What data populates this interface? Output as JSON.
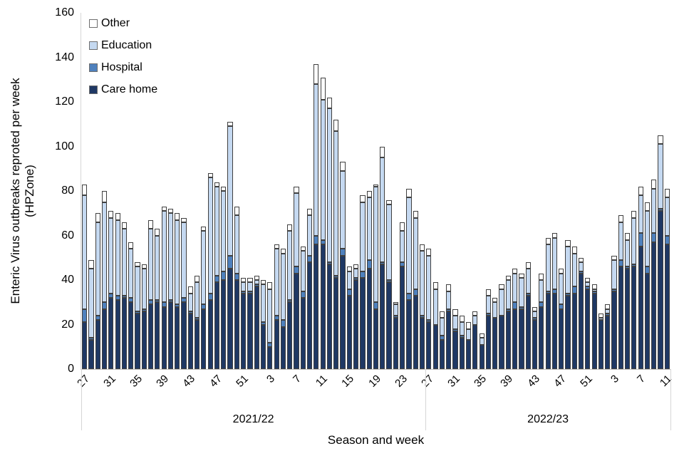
{
  "chart_data": {
    "type": "bar",
    "stacked": true,
    "title": "",
    "xlabel": "Season and week",
    "ylabel_line1": "Enteric Virus outbreaks reproted per week",
    "ylabel_line2": "(HPZone)",
    "ylim": [
      0,
      160
    ],
    "yticks": [
      0,
      20,
      40,
      60,
      80,
      100,
      120,
      140,
      160
    ],
    "grid": false,
    "x_tick_interval": 4,
    "legend_position": "top-left-inside",
    "legend": [
      {
        "label": "Other",
        "color": "#ffffff"
      },
      {
        "label": "Education",
        "color": "#c5d9f1"
      },
      {
        "label": "Hospital",
        "color": "#4f81bd"
      },
      {
        "label": "Care home",
        "color": "#1f3864"
      }
    ],
    "stack_order_bottom_to_top": [
      "Care home",
      "Hospital",
      "Education",
      "Other"
    ],
    "value_order": [
      "care_home",
      "hospital",
      "education",
      "other"
    ],
    "seasons": [
      {
        "label": "2021/22",
        "bars": [
          {
            "week": 27,
            "v": [
              21,
              6,
              51,
              5
            ]
          },
          {
            "week": 28,
            "v": [
              13,
              1,
              31,
              4
            ]
          },
          {
            "week": 29,
            "v": [
              22,
              2,
              42,
              4
            ]
          },
          {
            "week": 30,
            "v": [
              27,
              3,
              45,
              5
            ]
          },
          {
            "week": 31,
            "v": [
              32,
              2,
              34,
              3
            ]
          },
          {
            "week": 32,
            "v": [
              31,
              2,
              34,
              3
            ]
          },
          {
            "week": 33,
            "v": [
              32,
              1,
              30,
              3
            ]
          },
          {
            "week": 34,
            "v": [
              30,
              2,
              22,
              3
            ]
          },
          {
            "week": 35,
            "v": [
              25,
              1,
              20,
              2
            ]
          },
          {
            "week": 36,
            "v": [
              26,
              1,
              18,
              2
            ]
          },
          {
            "week": 37,
            "v": [
              29,
              2,
              32,
              4
            ]
          },
          {
            "week": 38,
            "v": [
              30,
              1,
              29,
              3
            ]
          },
          {
            "week": 39,
            "v": [
              28,
              2,
              41,
              2
            ]
          },
          {
            "week": 40,
            "v": [
              30,
              1,
              39,
              2
            ]
          },
          {
            "week": 41,
            "v": [
              28,
              1,
              38,
              3
            ]
          },
          {
            "week": 42,
            "v": [
              30,
              2,
              34,
              2
            ]
          },
          {
            "week": 43,
            "v": [
              25,
              1,
              8,
              3
            ]
          },
          {
            "week": 44,
            "v": [
              22,
              1,
              16,
              3
            ]
          },
          {
            "week": 45,
            "v": [
              27,
              2,
              33,
              2
            ]
          },
          {
            "week": 46,
            "v": [
              31,
              3,
              52,
              2
            ]
          },
          {
            "week": 47,
            "v": [
              39,
              3,
              40,
              2
            ]
          },
          {
            "week": 48,
            "v": [
              40,
              4,
              36,
              2
            ]
          },
          {
            "week": 49,
            "v": [
              45,
              6,
              58,
              2
            ]
          },
          {
            "week": 50,
            "v": [
              40,
              3,
              26,
              4
            ]
          },
          {
            "week": 51,
            "v": [
              34,
              1,
              4,
              2
            ]
          },
          {
            "week": 52,
            "v": [
              34,
              1,
              4,
              2
            ]
          },
          {
            "week": 1,
            "v": [
              37,
              1,
              2,
              2
            ]
          },
          {
            "week": 2,
            "v": [
              20,
              1,
              17,
              2
            ]
          },
          {
            "week": 3,
            "v": [
              10,
              2,
              24,
              3
            ]
          },
          {
            "week": 4,
            "v": [
              22,
              2,
              30,
              2
            ]
          },
          {
            "week": 5,
            "v": [
              19,
              3,
              30,
              2
            ]
          },
          {
            "week": 6,
            "v": [
              30,
              1,
              31,
              3
            ]
          },
          {
            "week": 7,
            "v": [
              43,
              3,
              33,
              3
            ]
          },
          {
            "week": 8,
            "v": [
              32,
              3,
              18,
              2
            ]
          },
          {
            "week": 9,
            "v": [
              48,
              3,
              18,
              3
            ]
          },
          {
            "week": 10,
            "v": [
              56,
              4,
              68,
              9
            ]
          },
          {
            "week": 11,
            "v": [
              56,
              2,
              63,
              10
            ]
          },
          {
            "week": 12,
            "v": [
              47,
              1,
              69,
              5
            ]
          },
          {
            "week": 13,
            "v": [
              41,
              1,
              65,
              5
            ]
          },
          {
            "week": 14,
            "v": [
              51,
              3,
              35,
              4
            ]
          },
          {
            "week": 15,
            "v": [
              33,
              3,
              8,
              2
            ]
          },
          {
            "week": 16,
            "v": [
              40,
              1,
              4,
              2
            ]
          },
          {
            "week": 17,
            "v": [
              41,
              3,
              31,
              3
            ]
          },
          {
            "week": 18,
            "v": [
              45,
              4,
              28,
              3
            ]
          },
          {
            "week": 19,
            "v": [
              27,
              3,
              52,
              1
            ]
          },
          {
            "week": 20,
            "v": [
              47,
              1,
              47,
              5
            ]
          },
          {
            "week": 21,
            "v": [
              39,
              1,
              34,
              2
            ]
          },
          {
            "week": 22,
            "v": [
              23,
              1,
              5,
              1
            ]
          },
          {
            "week": 23,
            "v": [
              46,
              2,
              14,
              4
            ]
          },
          {
            "week": 24,
            "v": [
              31,
              3,
              43,
              4
            ]
          },
          {
            "week": 25,
            "v": [
              33,
              3,
              32,
              3
            ]
          },
          {
            "week": 26,
            "v": [
              23,
              1,
              29,
              3
            ]
          }
        ]
      },
      {
        "label": "2022/23",
        "bars": [
          {
            "week": 27,
            "v": [
              21,
              1,
              29,
              3
            ]
          },
          {
            "week": 28,
            "v": [
              20,
              0,
              16,
              3
            ]
          },
          {
            "week": 29,
            "v": [
              13,
              2,
              8,
              3
            ]
          },
          {
            "week": 30,
            "v": [
              26,
              1,
              8,
              3
            ]
          },
          {
            "week": 31,
            "v": [
              17,
              1,
              6,
              3
            ]
          },
          {
            "week": 32,
            "v": [
              14,
              1,
              6,
              3
            ]
          },
          {
            "week": 33,
            "v": [
              13,
              0,
              5,
              3
            ]
          },
          {
            "week": 34,
            "v": [
              20,
              0,
              4,
              2
            ]
          },
          {
            "week": 35,
            "v": [
              11,
              0,
              3,
              2
            ]
          },
          {
            "week": 36,
            "v": [
              24,
              1,
              8,
              3
            ]
          },
          {
            "week": 37,
            "v": [
              23,
              0,
              7,
              2
            ]
          },
          {
            "week": 38,
            "v": [
              24,
              0,
              12,
              2
            ]
          },
          {
            "week": 39,
            "v": [
              26,
              1,
              13,
              2
            ]
          },
          {
            "week": 40,
            "v": [
              27,
              3,
              13,
              2
            ]
          },
          {
            "week": 41,
            "v": [
              27,
              1,
              13,
              2
            ]
          },
          {
            "week": 42,
            "v": [
              33,
              1,
              11,
              3
            ]
          },
          {
            "week": 43,
            "v": [
              22,
              1,
              3,
              2
            ]
          },
          {
            "week": 44,
            "v": [
              28,
              2,
              10,
              3
            ]
          },
          {
            "week": 45,
            "v": [
              34,
              1,
              21,
              3
            ]
          },
          {
            "week": 46,
            "v": [
              34,
              2,
              23,
              2
            ]
          },
          {
            "week": 47,
            "v": [
              27,
              2,
              14,
              2
            ]
          },
          {
            "week": 48,
            "v": [
              33,
              1,
              21,
              3
            ]
          },
          {
            "week": 49,
            "v": [
              34,
              3,
              15,
              3
            ]
          },
          {
            "week": 50,
            "v": [
              43,
              1,
              4,
              2
            ]
          },
          {
            "week": 51,
            "v": [
              36,
              1,
              2,
              2
            ]
          },
          {
            "week": 52,
            "v": [
              34,
              1,
              1,
              2
            ]
          },
          {
            "week": 1,
            "v": [
              22,
              0,
              1,
              2
            ]
          },
          {
            "week": 2,
            "v": [
              24,
              1,
              2,
              2
            ]
          },
          {
            "week": 3,
            "v": [
              35,
              1,
              13,
              2
            ]
          },
          {
            "week": 4,
            "v": [
              46,
              3,
              17,
              3
            ]
          },
          {
            "week": 5,
            "v": [
              45,
              1,
              12,
              3
            ]
          },
          {
            "week": 6,
            "v": [
              46,
              1,
              21,
              3
            ]
          },
          {
            "week": 7,
            "v": [
              55,
              6,
              17,
              4
            ]
          },
          {
            "week": 8,
            "v": [
              43,
              3,
              25,
              4
            ]
          },
          {
            "week": 9,
            "v": [
              57,
              4,
              20,
              4
            ]
          },
          {
            "week": 10,
            "v": [
              71,
              1,
              29,
              4
            ]
          },
          {
            "week": 11,
            "v": [
              56,
              4,
              17,
              4
            ]
          }
        ]
      }
    ]
  }
}
